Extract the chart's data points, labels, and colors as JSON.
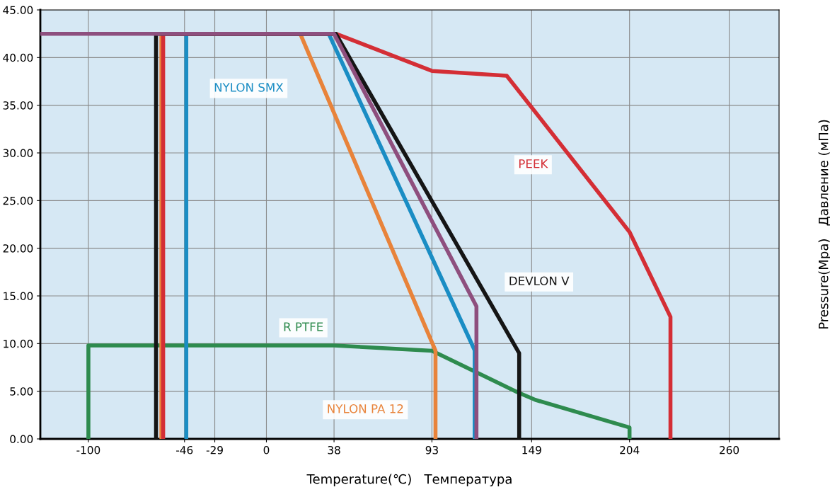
{
  "chart_data": {
    "type": "line",
    "xlabel": "Temperature(℃)   Температура",
    "ylabel": "Pressure(Mpa)   Давление (мПа)",
    "xlim": [
      -127,
      288
    ],
    "xticks": [
      -100,
      -46,
      -29,
      0,
      38,
      93,
      149,
      204,
      260
    ],
    "ylim": [
      0,
      45
    ],
    "yticks": [
      {
        "value": 0,
        "label": "0.00"
      },
      {
        "value": 5,
        "label": "5.00"
      },
      {
        "value": 10,
        "label": "10.00"
      },
      {
        "value": 15,
        "label": "15.00"
      },
      {
        "value": 20,
        "label": "20.00"
      },
      {
        "value": 25,
        "label": "25.00"
      },
      {
        "value": 30,
        "label": "30.00"
      },
      {
        "value": 35,
        "label": "35.00"
      },
      {
        "value": 40,
        "label": "40.00"
      },
      {
        "value": 45,
        "label": "45.00"
      }
    ],
    "grid": true,
    "legend": false,
    "marker": "none",
    "line_style": "solid",
    "series": [
      {
        "name": "R PTFE",
        "color": "#2e8b4e",
        "x": [
          -100,
          -100,
          38,
          93,
          141,
          151,
          204,
          204
        ],
        "values": [
          0,
          9.8,
          9.8,
          9.25,
          4.9,
          4.1,
          1.2,
          0
        ]
      },
      {
        "name": "NYLON PA 12",
        "color": "#e8833a",
        "x": [
          -59,
          -59,
          19,
          95,
          95
        ],
        "values": [
          0,
          42.5,
          42.5,
          9.25,
          0
        ]
      },
      {
        "name": "NYLON SMX",
        "color": "#1a8dc4",
        "x": [
          -45,
          -45,
          35,
          117,
          117
        ],
        "values": [
          0,
          42.5,
          42.5,
          9.3,
          0
        ]
      },
      {
        "name": "PEEK",
        "color": "#d42e35",
        "x": [
          -58,
          -58,
          39,
          93,
          135,
          204,
          227,
          227
        ],
        "values": [
          0,
          42.5,
          42.5,
          38.6,
          38.1,
          21.7,
          12.8,
          0
        ]
      },
      {
        "name": "DEVLON V",
        "color": "#151515",
        "x": [
          -62,
          -62,
          39,
          142,
          142
        ],
        "values": [
          0,
          42.5,
          42.5,
          9.0,
          0
        ]
      },
      {
        "color": "#8e4f7e",
        "x": [
          -127,
          38,
          118,
          118
        ],
        "values": [
          42.5,
          42.5,
          13.9,
          0
        ]
      }
    ]
  }
}
